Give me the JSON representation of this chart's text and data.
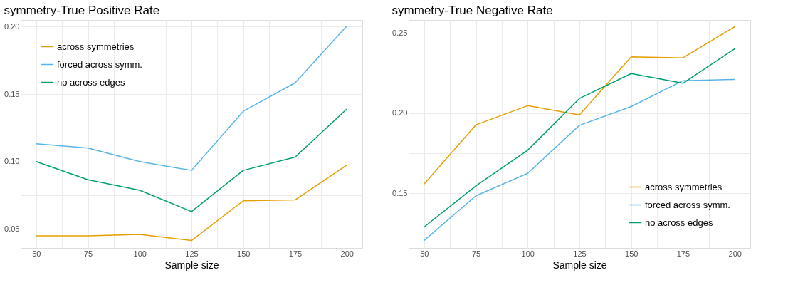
{
  "chart_data": [
    {
      "type": "line",
      "title": "symmetry-True Positive Rate",
      "xlabel": "Sample size",
      "x": [
        50,
        75,
        100,
        125,
        150,
        175,
        200
      ],
      "series": [
        {
          "name": "across symmetries",
          "color": "#e69f00",
          "values": [
            0.045,
            0.045,
            0.046,
            0.0415,
            0.071,
            0.0716,
            0.0975
          ]
        },
        {
          "name": "forced across symm.",
          "color": "#56b4e9",
          "values": [
            0.1132,
            0.1101,
            0.1,
            0.0935,
            0.1373,
            0.1584,
            0.2005
          ]
        },
        {
          "name": "no across edges",
          "color": "#009e73",
          "values": [
            0.1,
            0.0866,
            0.0788,
            0.063,
            0.0935,
            0.1033,
            0.139
          ]
        }
      ],
      "xlim": [
        42.5,
        207.5
      ],
      "xticks": [
        50,
        {
          "value": 62.5,
          "label": null
        },
        75,
        {
          "value": 87.5,
          "label": null
        },
        100,
        {
          "value": 112.5,
          "label": null
        },
        125,
        {
          "value": 137.5,
          "label": null
        },
        150,
        {
          "value": 162.5,
          "label": null
        },
        175,
        {
          "value": 187.5,
          "label": null
        },
        200
      ],
      "ylim": [
        0.036,
        0.205
      ],
      "yticks": [
        {
          "value": 0.05,
          "label": "0.05"
        },
        {
          "value": 0.075,
          "label": null
        },
        {
          "value": 0.1,
          "label": "0.10"
        },
        {
          "value": 0.125,
          "label": null
        },
        {
          "value": 0.15,
          "label": "0.15"
        },
        {
          "value": 0.175,
          "label": null
        },
        {
          "value": 0.2,
          "label": "0.20"
        }
      ],
      "grid": true,
      "legend": "top left",
      "marker": "none",
      "line_style": "solid"
    },
    {
      "type": "line",
      "title": "symmetry-True Negative Rate",
      "xlabel": "Sample size",
      "x": [
        50,
        75,
        100,
        125,
        150,
        175,
        200
      ],
      "series": [
        {
          "name": "across symmetries",
          "color": "#e69f00",
          "values": [
            0.1558,
            0.1927,
            0.2046,
            0.1989,
            0.235,
            0.2344,
            0.2538
          ]
        },
        {
          "name": "forced across symm.",
          "color": "#56b4e9",
          "values": [
            0.1207,
            0.1485,
            0.1625,
            0.1924,
            0.2041,
            0.2202,
            0.221
          ]
        },
        {
          "name": "no across edges",
          "color": "#009e73",
          "values": [
            0.1291,
            0.1547,
            0.1769,
            0.2091,
            0.2246,
            0.2186,
            0.2401
          ]
        }
      ],
      "xlim": [
        42.5,
        207.5
      ],
      "xticks": [
        50,
        {
          "value": 62.5,
          "label": null
        },
        75,
        {
          "value": 87.5,
          "label": null
        },
        100,
        {
          "value": 112.5,
          "label": null
        },
        125,
        {
          "value": 137.5,
          "label": null
        },
        150,
        {
          "value": 162.5,
          "label": null
        },
        175,
        {
          "value": 187.5,
          "label": null
        },
        200
      ],
      "ylim": [
        0.116,
        0.258
      ],
      "yticks": [
        {
          "value": 0.125,
          "label": null
        },
        {
          "value": 0.15,
          "label": "0.15"
        },
        {
          "value": 0.175,
          "label": null
        },
        {
          "value": 0.2,
          "label": "0.20"
        },
        {
          "value": 0.225,
          "label": null
        },
        {
          "value": 0.25,
          "label": "0.25"
        }
      ],
      "grid": true,
      "legend": "bottom right",
      "marker": "none",
      "line_style": "solid"
    }
  ]
}
